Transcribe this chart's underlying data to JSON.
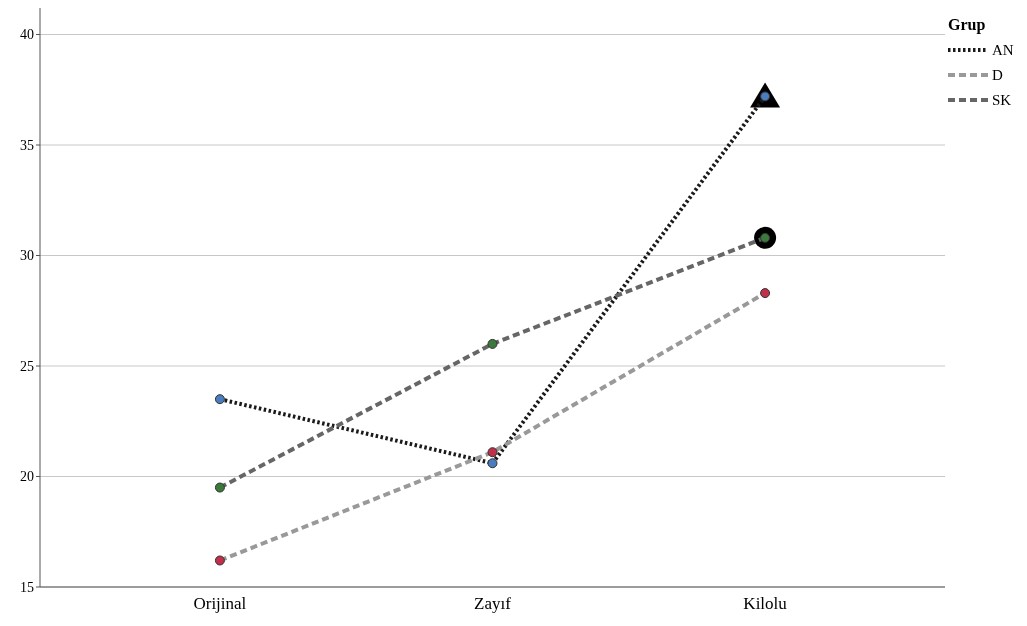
{
  "chart_data": {
    "type": "line",
    "categories": [
      "Orijinal",
      "Zayıf",
      "Kilolu"
    ],
    "ylim": [
      15,
      41.2
    ],
    "yticks": [
      15,
      20,
      25,
      30,
      35,
      40
    ],
    "grid": "y",
    "legend": "top right",
    "legend_title": "Grup",
    "marker": "circle",
    "series": [
      {
        "name": "AN",
        "color": "#1a1a1a",
        "line_style": "dotted",
        "colors": [
          "#4a7cc0",
          "#4a7cc0",
          "#4a7cc0"
        ],
        "values": [
          23.5,
          20.6,
          37.2
        ]
      },
      {
        "name": "D",
        "color": "#999999",
        "line_style": "dashed",
        "colors": [
          "#c0304a",
          "#c0304a",
          "#c0304a"
        ],
        "values": [
          16.2,
          21.1,
          28.3
        ]
      },
      {
        "name": "SK",
        "color": "#666666",
        "line_style": "dashed",
        "colors": [
          "#3a7a3a",
          "#3a7a3a",
          "#3a7a3a"
        ],
        "values": [
          19.5,
          26.0,
          30.8
        ]
      }
    ]
  }
}
